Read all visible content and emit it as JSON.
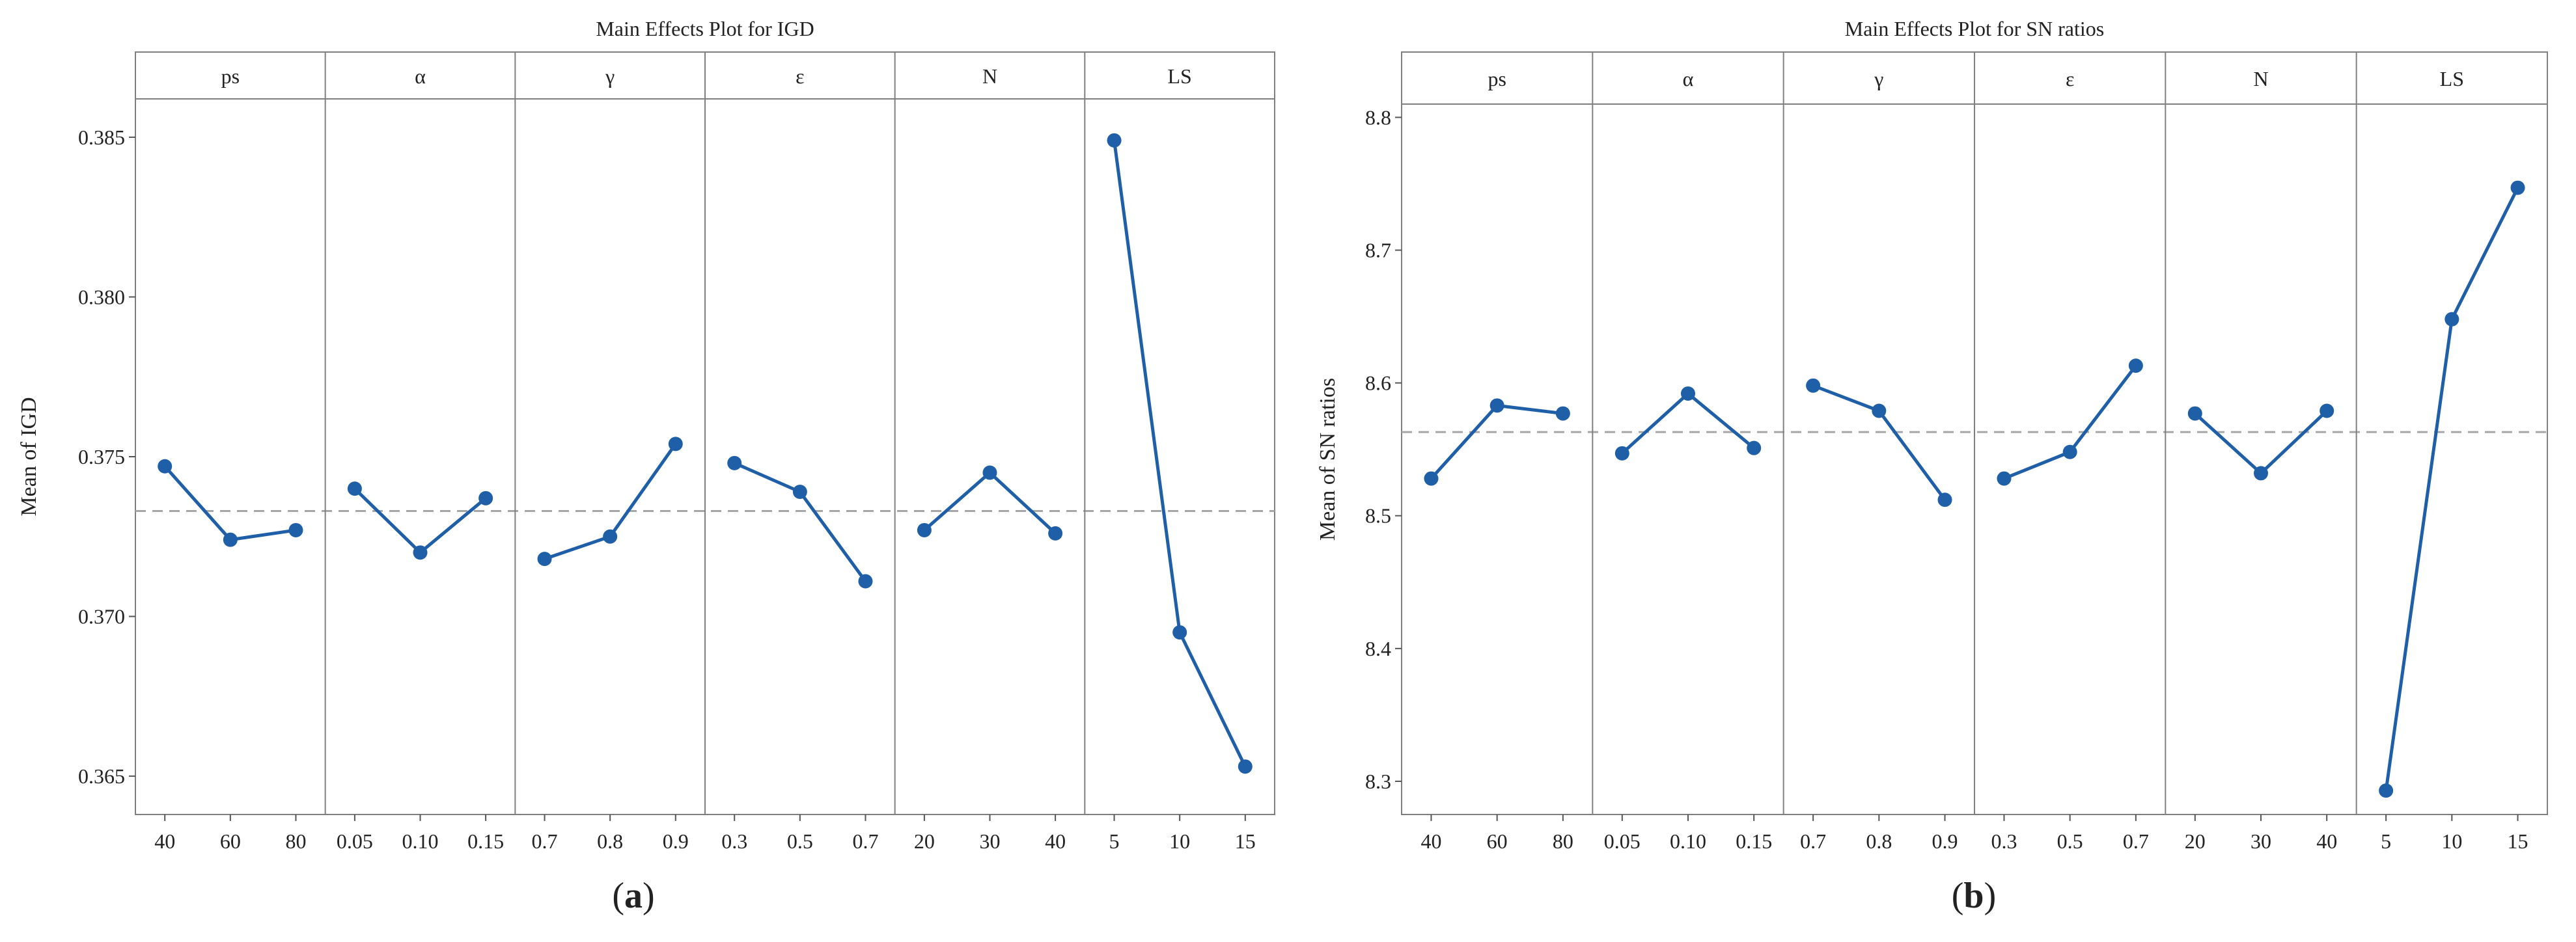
{
  "chart_data": [
    {
      "type": "line",
      "title": "Main Effects Plot for IGD",
      "ylabel": "Mean of IGD",
      "xlabel": "",
      "ylim": [
        0.3638,
        0.3862
      ],
      "yticks": [
        "0.365",
        "0.370",
        "0.375",
        "0.380",
        "0.385"
      ],
      "ytick_values": [
        0.365,
        0.37,
        0.375,
        0.38,
        0.385
      ],
      "reference_line": 0.3733,
      "grid": false,
      "line_color": "#1f5fa8",
      "reference_color": "#a6a6a6",
      "panel_label_prefix": "(",
      "panel_label": "a",
      "panel_label_suffix": ")",
      "panels": [
        {
          "factor": "ps",
          "levels": [
            "40",
            "60",
            "80"
          ],
          "values": [
            0.3747,
            0.3724,
            0.3727
          ]
        },
        {
          "factor": "α",
          "levels": [
            "0.05",
            "0.10",
            "0.15"
          ],
          "values": [
            0.374,
            0.372,
            0.3737
          ]
        },
        {
          "factor": "γ",
          "levels": [
            "0.7",
            "0.8",
            "0.9"
          ],
          "values": [
            0.3718,
            0.3725,
            0.3754
          ]
        },
        {
          "factor": "ε",
          "levels": [
            "0.3",
            "0.5",
            "0.7"
          ],
          "values": [
            0.3748,
            0.3739,
            0.3711
          ]
        },
        {
          "factor": "N",
          "levels": [
            "20",
            "30",
            "40"
          ],
          "values": [
            0.3727,
            0.3745,
            0.3726
          ]
        },
        {
          "factor": "LS",
          "levels": [
            "5",
            "10",
            "15"
          ],
          "values": [
            0.3849,
            0.3695,
            0.3653
          ]
        }
      ]
    },
    {
      "type": "line",
      "title": "Main Effects Plot for SN ratios",
      "ylabel": "Mean of SN ratios",
      "xlabel": "",
      "ylim": [
        8.275,
        8.81
      ],
      "yticks": [
        "8.3",
        "8.4",
        "8.5",
        "8.6",
        "8.7",
        "8.8"
      ],
      "ytick_values": [
        8.3,
        8.4,
        8.5,
        8.6,
        8.7,
        8.8
      ],
      "reference_line": 8.563,
      "grid": false,
      "line_color": "#1f5fa8",
      "reference_color": "#a6a6a6",
      "panel_label_prefix": "(",
      "panel_label": "b",
      "panel_label_suffix": ")",
      "panels": [
        {
          "factor": "ps",
          "levels": [
            "40",
            "60",
            "80"
          ],
          "values": [
            8.528,
            8.583,
            8.577
          ]
        },
        {
          "factor": "α",
          "levels": [
            "0.05",
            "0.10",
            "0.15"
          ],
          "values": [
            8.547,
            8.592,
            8.551
          ]
        },
        {
          "factor": "γ",
          "levels": [
            "0.7",
            "0.8",
            "0.9"
          ],
          "values": [
            8.598,
            8.579,
            8.512
          ]
        },
        {
          "factor": "ε",
          "levels": [
            "0.3",
            "0.5",
            "0.7"
          ],
          "values": [
            8.528,
            8.548,
            8.613
          ]
        },
        {
          "factor": "N",
          "levels": [
            "20",
            "30",
            "40"
          ],
          "values": [
            8.577,
            8.532,
            8.579
          ]
        },
        {
          "factor": "LS",
          "levels": [
            "5",
            "10",
            "15"
          ],
          "values": [
            8.293,
            8.648,
            8.747
          ]
        }
      ]
    }
  ]
}
